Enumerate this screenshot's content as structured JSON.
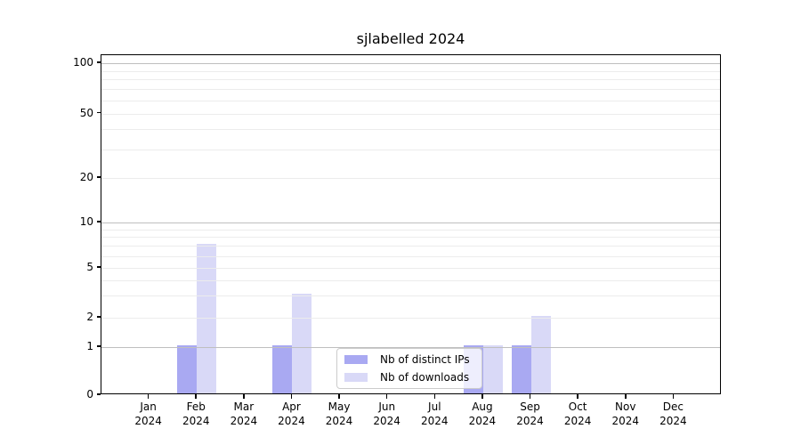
{
  "figure": {
    "background": "#ffffff"
  },
  "chart_data": {
    "type": "bar",
    "title": "sjlabelled 2024",
    "categories": [
      "Jan",
      "Feb",
      "Mar",
      "Apr",
      "May",
      "Jun",
      "Jul",
      "Aug",
      "Sep",
      "Oct",
      "Nov",
      "Dec"
    ],
    "x_sublabel_year": "2024",
    "series": [
      {
        "name": "Nb of distinct IPs",
        "color": "#a9a9f2",
        "values": [
          0,
          1,
          0,
          1,
          0,
          0,
          0,
          1,
          1,
          0,
          0,
          0
        ]
      },
      {
        "name": "Nb of downloads",
        "color": "#d9d9f7",
        "values": [
          0,
          7,
          0,
          3,
          0,
          0,
          0,
          1,
          2,
          0,
          0,
          0
        ]
      }
    ],
    "xlabel": "",
    "ylabel": "",
    "yaxis": {
      "scale": "log-like (0 baseline, log above 1)",
      "tick_values": [
        0,
        1,
        2,
        5,
        10,
        20,
        50,
        100
      ],
      "tick_labels": [
        "0",
        "1",
        "2",
        "5",
        "10",
        "20",
        "50",
        "100"
      ],
      "major_gridlines": [
        1,
        10,
        100
      ],
      "minor_gridlines": [
        2,
        3,
        4,
        5,
        6,
        7,
        8,
        9,
        20,
        30,
        40,
        50,
        60,
        70,
        80,
        90
      ],
      "range_top_value": 115
    },
    "grid": true,
    "legend": {
      "position": "inside lower-center",
      "entries": [
        "Nb of distinct IPs",
        "Nb of downloads"
      ]
    },
    "colors": {
      "minor_grid": "#ececec",
      "major_grid": "#bfbfbf",
      "axis": "#000000",
      "text": "#000000"
    }
  }
}
